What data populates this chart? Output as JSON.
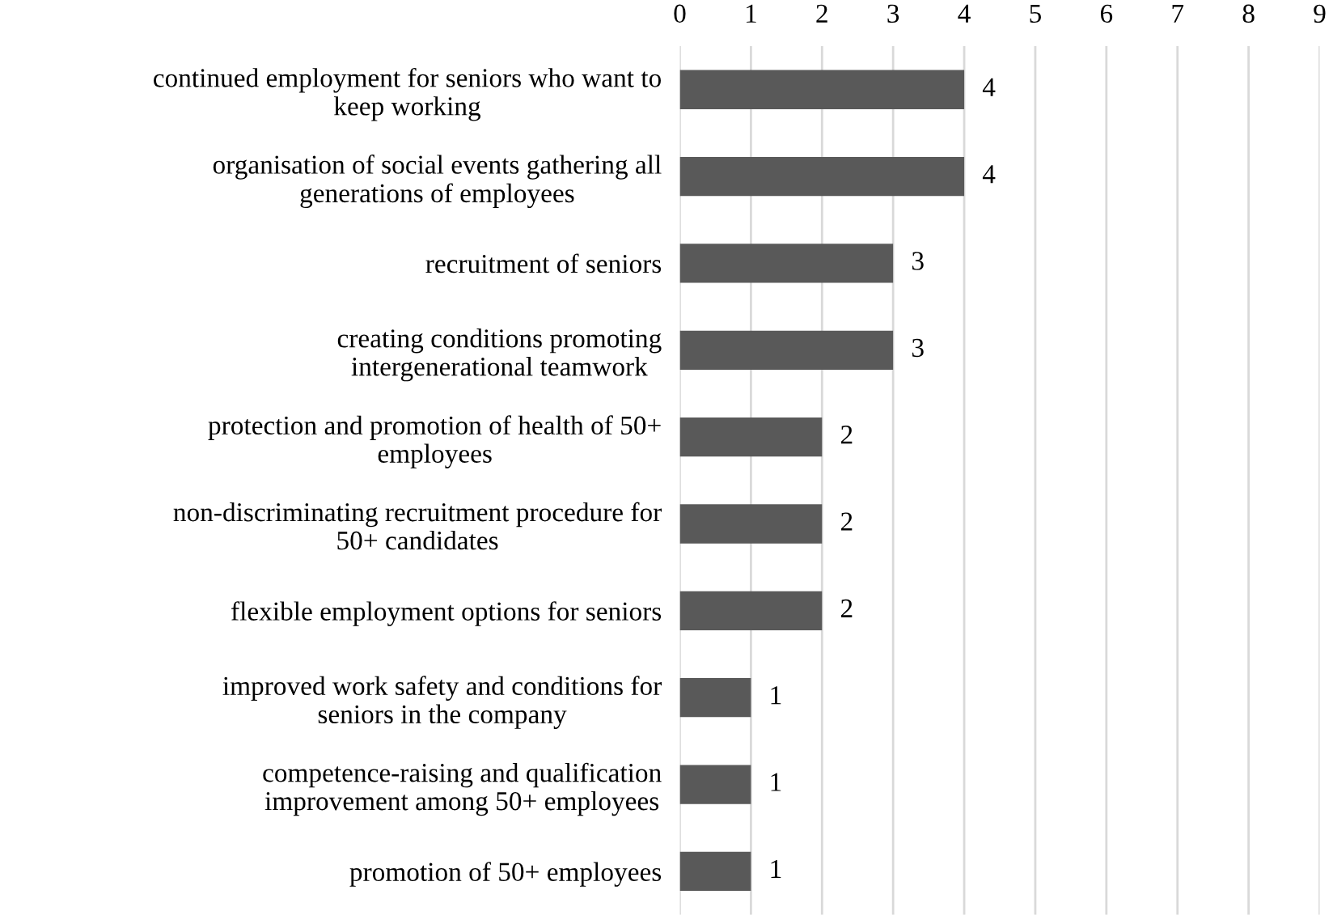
{
  "chart_data": {
    "type": "bar",
    "orientation": "horizontal",
    "categories": [
      "continued employment for seniors who want to\nkeep working",
      "organisation of social events gathering all\ngenerations of employees",
      "recruitment of seniors",
      "creating conditions promoting\nintergenerational teamwork",
      "protection and promotion of health of 50+\nemployees",
      "non-discriminating recruitment procedure for\n50+ candidates",
      "flexible employment options for seniors",
      "improved work safety and conditions for\nseniors in the company",
      "competence-raising and qualification\nimprovement among 50+ employees",
      "promotion of 50+ employees"
    ],
    "values": [
      4,
      4,
      3,
      3,
      2,
      2,
      2,
      1,
      1,
      1
    ],
    "color": "#595959",
    "xlim": [
      0,
      9
    ],
    "xticks": [
      0,
      1,
      2,
      3,
      4,
      5,
      6,
      7,
      8,
      9
    ],
    "grid": "x",
    "data_labels": true,
    "legend": false
  }
}
